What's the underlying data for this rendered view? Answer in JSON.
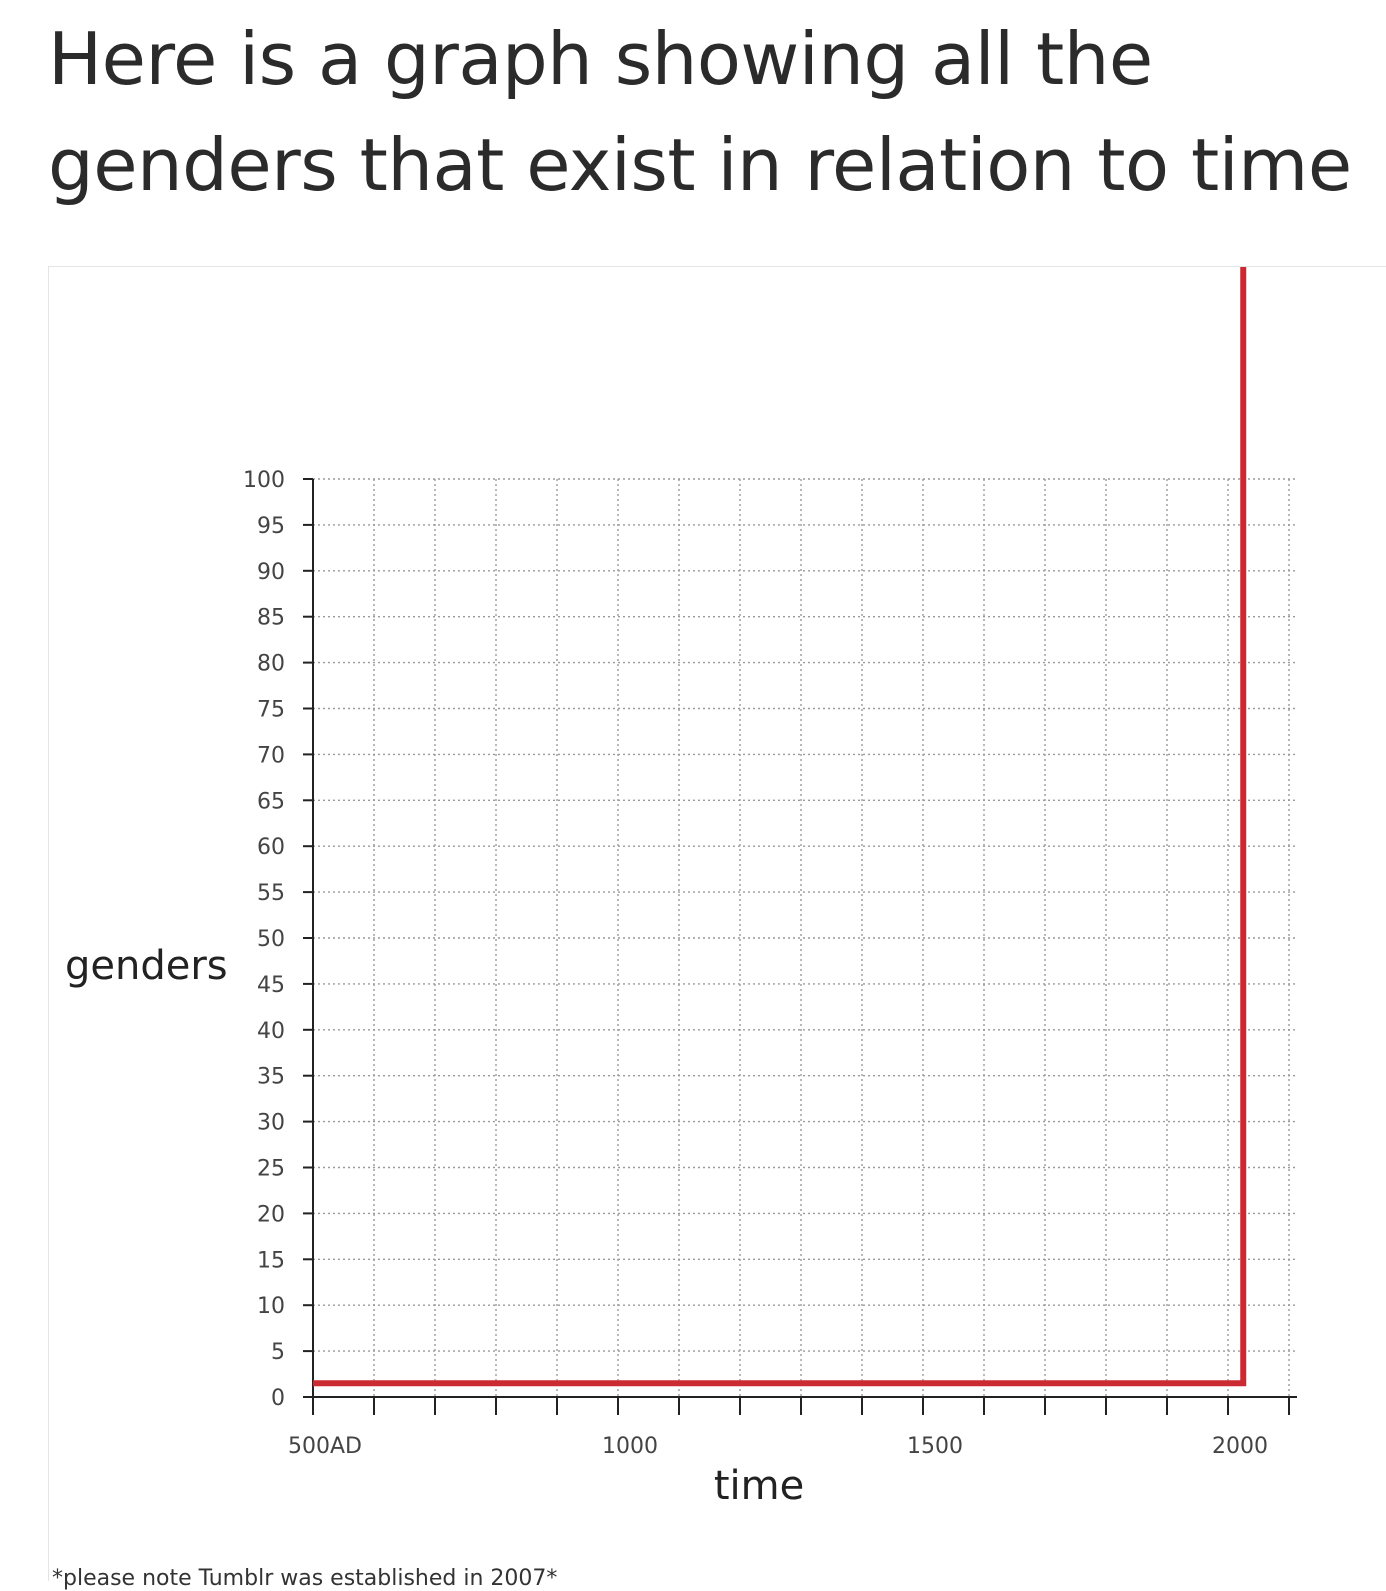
{
  "post": {
    "title": "Here is a graph showing all the genders that exist in relation to time",
    "footnote": "*please note Tumblr was established in 2007*"
  },
  "chart_data": {
    "type": "line",
    "xlabel": "time",
    "ylabel": "genders",
    "xlim": [
      500,
      2100
    ],
    "ylim": [
      0,
      100
    ],
    "x_ticks": [
      500,
      600,
      700,
      800,
      900,
      1000,
      1100,
      1200,
      1300,
      1400,
      1500,
      1600,
      1700,
      1800,
      1900,
      2000,
      2100
    ],
    "x_tick_labels": [
      {
        "x": 500,
        "label": "500AD"
      },
      {
        "x": 1000,
        "label": "1000"
      },
      {
        "x": 1500,
        "label": "1500"
      },
      {
        "x": 2000,
        "label": "2000"
      }
    ],
    "y_ticks": [
      0,
      5,
      10,
      15,
      20,
      25,
      30,
      35,
      40,
      45,
      50,
      55,
      60,
      65,
      70,
      75,
      80,
      85,
      90,
      95,
      100
    ],
    "grid": true,
    "series": [
      {
        "color": "#cc2a33",
        "points": [
          [
            500,
            1.5
          ],
          [
            2025,
            1.5
          ],
          [
            2025,
            100
          ]
        ]
      }
    ]
  }
}
